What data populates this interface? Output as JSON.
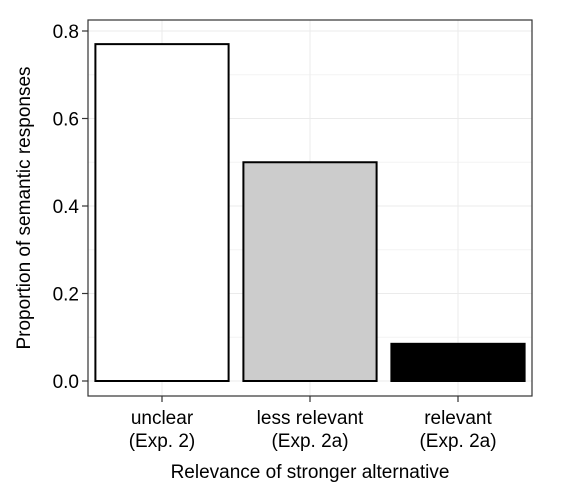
{
  "chart_data": {
    "type": "bar",
    "title": "",
    "xlabel": "Relevance of stronger alternative",
    "ylabel": "Proportion of semantic responses",
    "categories": [
      [
        "unclear",
        "(Exp. 2)"
      ],
      [
        "less relevant",
        "(Exp. 2a)"
      ],
      [
        "relevant",
        "(Exp. 2a)"
      ]
    ],
    "values": [
      0.77,
      0.5,
      0.085
    ],
    "bar_colors": [
      "#ffffff",
      "#cccccc",
      "#000000"
    ],
    "bar_outline": "#000000",
    "ylim": [
      0,
      0.8
    ],
    "yticks": [
      0.0,
      0.2,
      0.4,
      0.6,
      0.8
    ],
    "ytick_labels": [
      "0.0",
      "0.2",
      "0.4",
      "0.6",
      "0.8"
    ],
    "grid": true,
    "grid_color": "#ebebeb",
    "legend": "none"
  }
}
